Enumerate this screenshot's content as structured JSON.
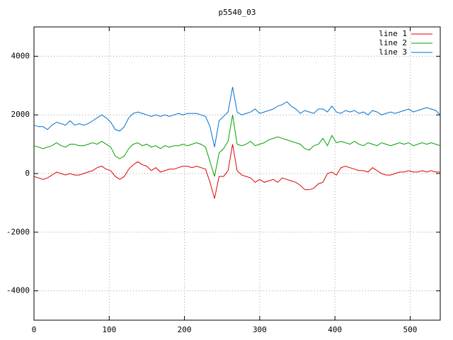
{
  "chart_data": {
    "type": "line",
    "title": "p5540_03",
    "x": [
      0,
      6,
      12,
      18,
      24,
      30,
      36,
      42,
      48,
      54,
      60,
      66,
      72,
      78,
      84,
      90,
      96,
      102,
      108,
      114,
      120,
      126,
      132,
      138,
      144,
      150,
      156,
      162,
      168,
      174,
      180,
      186,
      192,
      198,
      204,
      210,
      216,
      222,
      228,
      234,
      240,
      246,
      252,
      258,
      264,
      270,
      276,
      282,
      288,
      294,
      300,
      306,
      312,
      318,
      324,
      330,
      336,
      342,
      348,
      354,
      360,
      366,
      372,
      378,
      384,
      390,
      396,
      402,
      408,
      414,
      420,
      426,
      432,
      438,
      444,
      450,
      456,
      462,
      468,
      474,
      480,
      486,
      492,
      498,
      504,
      510,
      516,
      522,
      528,
      534,
      540
    ],
    "series": [
      {
        "name": "line 1",
        "color": "#e00000",
        "values": [
          -100,
          -150,
          -200,
          -150,
          -50,
          50,
          0,
          -50,
          0,
          -50,
          -50,
          0,
          50,
          100,
          200,
          250,
          150,
          100,
          -100,
          -200,
          -100,
          150,
          300,
          400,
          300,
          250,
          100,
          200,
          50,
          100,
          150,
          150,
          200,
          250,
          250,
          200,
          250,
          200,
          150,
          -300,
          -850,
          -100,
          -100,
          100,
          1000,
          100,
          -50,
          -100,
          -150,
          -300,
          -200,
          -300,
          -250,
          -200,
          -300,
          -150,
          -200,
          -250,
          -300,
          -400,
          -550,
          -550,
          -500,
          -350,
          -300,
          0,
          50,
          -50,
          200,
          250,
          200,
          150,
          100,
          100,
          50,
          200,
          100,
          0,
          -50,
          -50,
          0,
          50,
          50,
          100,
          50,
          50,
          100,
          50,
          100,
          50,
          50
        ]
      },
      {
        "name": "line 2",
        "color": "#00a000",
        "values": [
          950,
          900,
          850,
          900,
          950,
          1050,
          950,
          900,
          1000,
          1000,
          950,
          950,
          1000,
          1050,
          1000,
          1100,
          1000,
          900,
          600,
          500,
          600,
          850,
          1000,
          1050,
          950,
          1000,
          900,
          950,
          850,
          950,
          900,
          950,
          950,
          1000,
          950,
          1000,
          1050,
          1000,
          900,
          400,
          -100,
          700,
          850,
          1100,
          2000,
          1000,
          950,
          1000,
          1100,
          950,
          1000,
          1050,
          1150,
          1200,
          1250,
          1200,
          1150,
          1100,
          1050,
          1000,
          850,
          800,
          950,
          1000,
          1200,
          950,
          1300,
          1050,
          1100,
          1050,
          1000,
          1100,
          1000,
          950,
          1050,
          1000,
          950,
          1050,
          1000,
          950,
          1000,
          1050,
          1000,
          1050,
          950,
          1000,
          1050,
          1000,
          1050,
          1000,
          950
        ]
      },
      {
        "name": "line 3",
        "color": "#0070d0",
        "values": [
          1650,
          1600,
          1600,
          1500,
          1650,
          1750,
          1700,
          1650,
          1800,
          1650,
          1700,
          1650,
          1700,
          1800,
          1900,
          2000,
          1900,
          1750,
          1500,
          1450,
          1600,
          1900,
          2050,
          2100,
          2050,
          2000,
          1950,
          2000,
          1950,
          2000,
          1950,
          2000,
          2050,
          2000,
          2050,
          2050,
          2050,
          2000,
          1950,
          1600,
          900,
          1800,
          1950,
          2100,
          2950,
          2100,
          2000,
          2050,
          2100,
          2200,
          2050,
          2100,
          2150,
          2200,
          2300,
          2350,
          2450,
          2300,
          2200,
          2050,
          2150,
          2100,
          2050,
          2200,
          2200,
          2100,
          2300,
          2100,
          2050,
          2150,
          2100,
          2150,
          2050,
          2100,
          2000,
          2150,
          2100,
          2000,
          2050,
          2100,
          2050,
          2100,
          2150,
          2200,
          2100,
          2150,
          2200,
          2250,
          2200,
          2150,
          2000
        ]
      }
    ],
    "xlim": [
      0,
      540
    ],
    "xticks": [
      0,
      100,
      200,
      300,
      400,
      500
    ],
    "ylim": [
      -5000,
      5000
    ],
    "yticks": [
      -4000,
      -2000,
      0,
      2000,
      4000
    ],
    "grid": true,
    "legend": "top-right"
  }
}
